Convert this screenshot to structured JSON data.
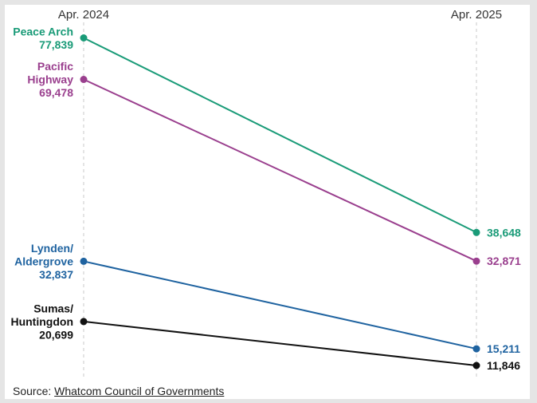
{
  "chart_data": {
    "type": "line",
    "x": [
      "Apr. 2024",
      "Apr. 2025"
    ],
    "ylim": [
      0,
      80000
    ],
    "grid": false,
    "legend": "none",
    "series": [
      {
        "name": "Peace Arch",
        "label_lines": [
          "Peace Arch"
        ],
        "values": [
          77839,
          38648
        ],
        "value_labels": [
          "77,839",
          "38,648"
        ],
        "color": "#1a9b78"
      },
      {
        "name": "Pacific Highway",
        "label_lines": [
          "Pacific",
          "Highway"
        ],
        "values": [
          69478,
          32871
        ],
        "value_labels": [
          "69,478",
          "32,871"
        ],
        "color": "#9a3f8e"
      },
      {
        "name": "Lynden/Aldergrove",
        "label_lines": [
          "Lynden/",
          "Aldergrove"
        ],
        "values": [
          32837,
          15211
        ],
        "value_labels": [
          "32,837",
          "15,211"
        ],
        "color": "#1f63a0"
      },
      {
        "name": "Sumas/Huntingdon",
        "label_lines": [
          "Sumas/",
          "Huntingdon"
        ],
        "values": [
          20699,
          11846
        ],
        "value_labels": [
          "20,699",
          "11,846"
        ],
        "color": "#111111"
      }
    ]
  },
  "source": {
    "prefix": "Source: ",
    "link_text": "Whatcom Council of Governments"
  }
}
